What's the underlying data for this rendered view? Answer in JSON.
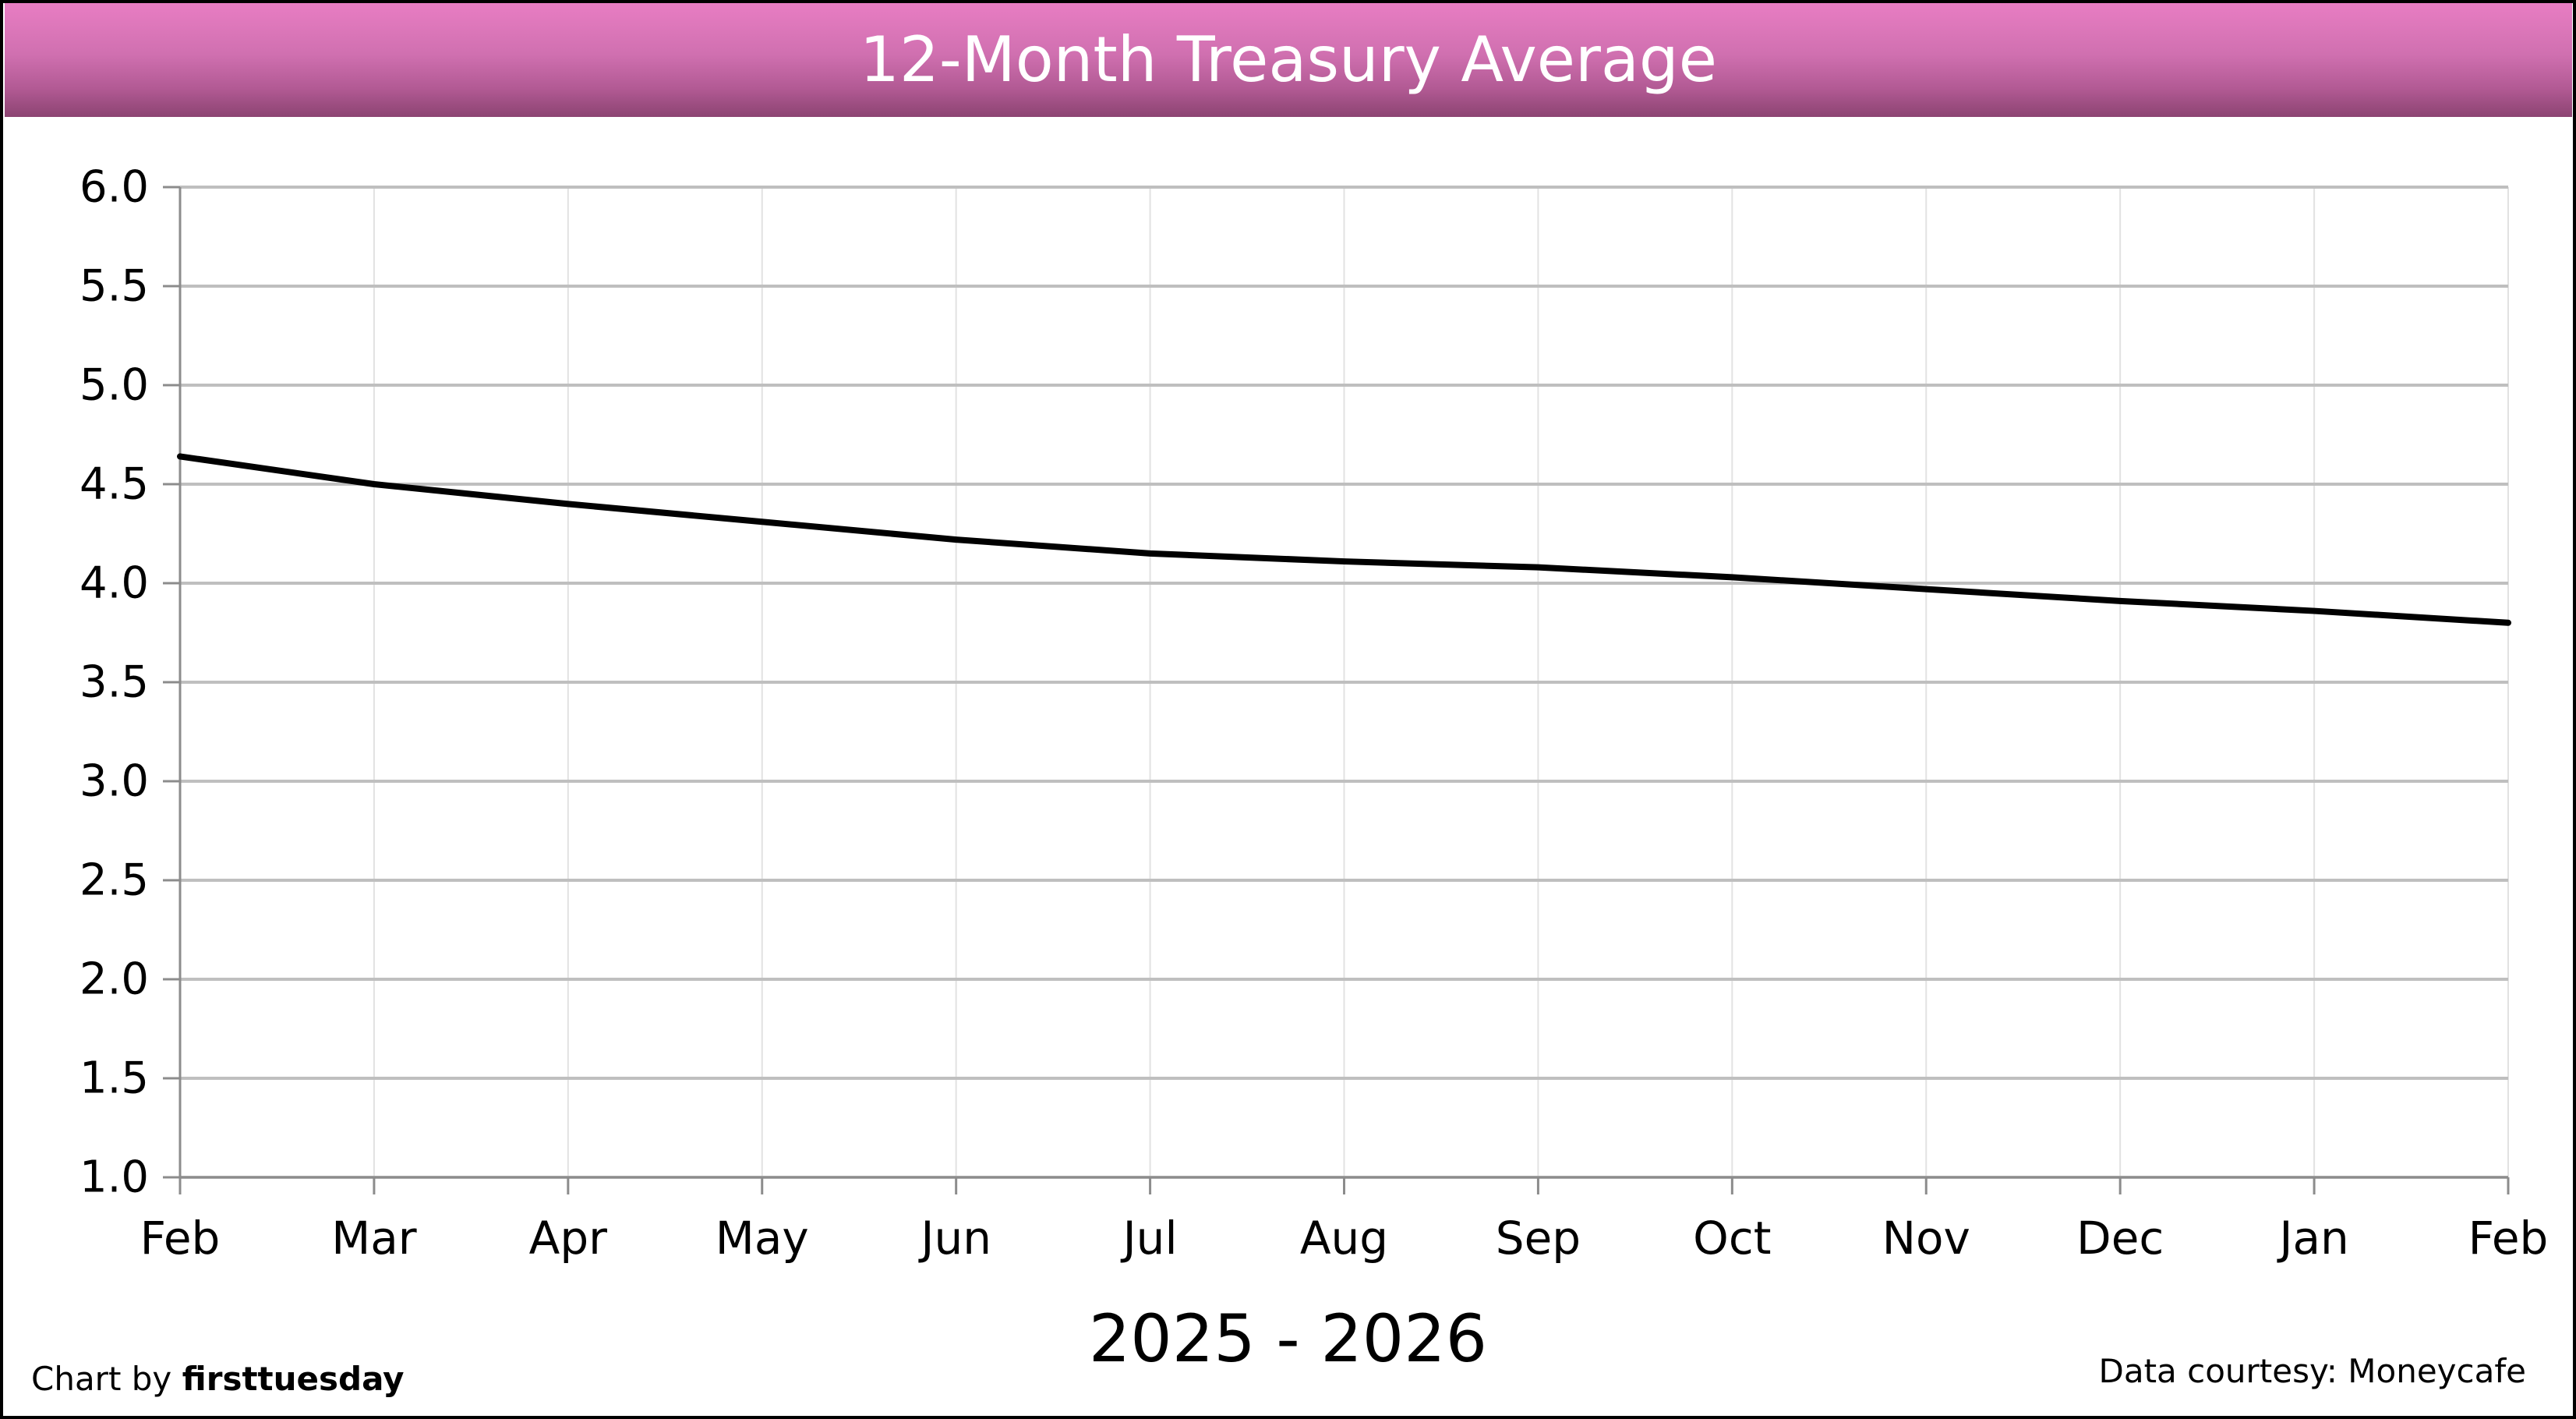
{
  "chart_data": {
    "type": "line",
    "title": "12-Month Treasury Average",
    "xlabel": "2025 - 2026",
    "ylabel": "",
    "categories": [
      "Feb",
      "Mar",
      "Apr",
      "May",
      "Jun",
      "Jul",
      "Aug",
      "Sep",
      "Oct",
      "Nov",
      "Dec",
      "Jan",
      "Feb"
    ],
    "series": [
      {
        "values": [
          4.64,
          4.5,
          4.4,
          4.31,
          4.22,
          4.15,
          4.11,
          4.08,
          4.03,
          3.97,
          3.91,
          3.86,
          3.8
        ],
        "color": "#000000"
      }
    ],
    "ylim": [
      1.0,
      6.0
    ],
    "yticks": [
      "1.0",
      "1.5",
      "2.0",
      "2.5",
      "3.0",
      "3.5",
      "4.0",
      "4.5",
      "5.0",
      "5.5",
      "6.0"
    ],
    "grid": true
  },
  "credits": {
    "left_prefix": "Chart by ",
    "left_brand": "firsttuesday",
    "right": "Data courtesy: Moneycafe"
  },
  "colors": {
    "banner": "#d070b0",
    "line": "#000000",
    "major_grid": "#bfbfbf",
    "minor_grid": "#e2e2e2"
  }
}
